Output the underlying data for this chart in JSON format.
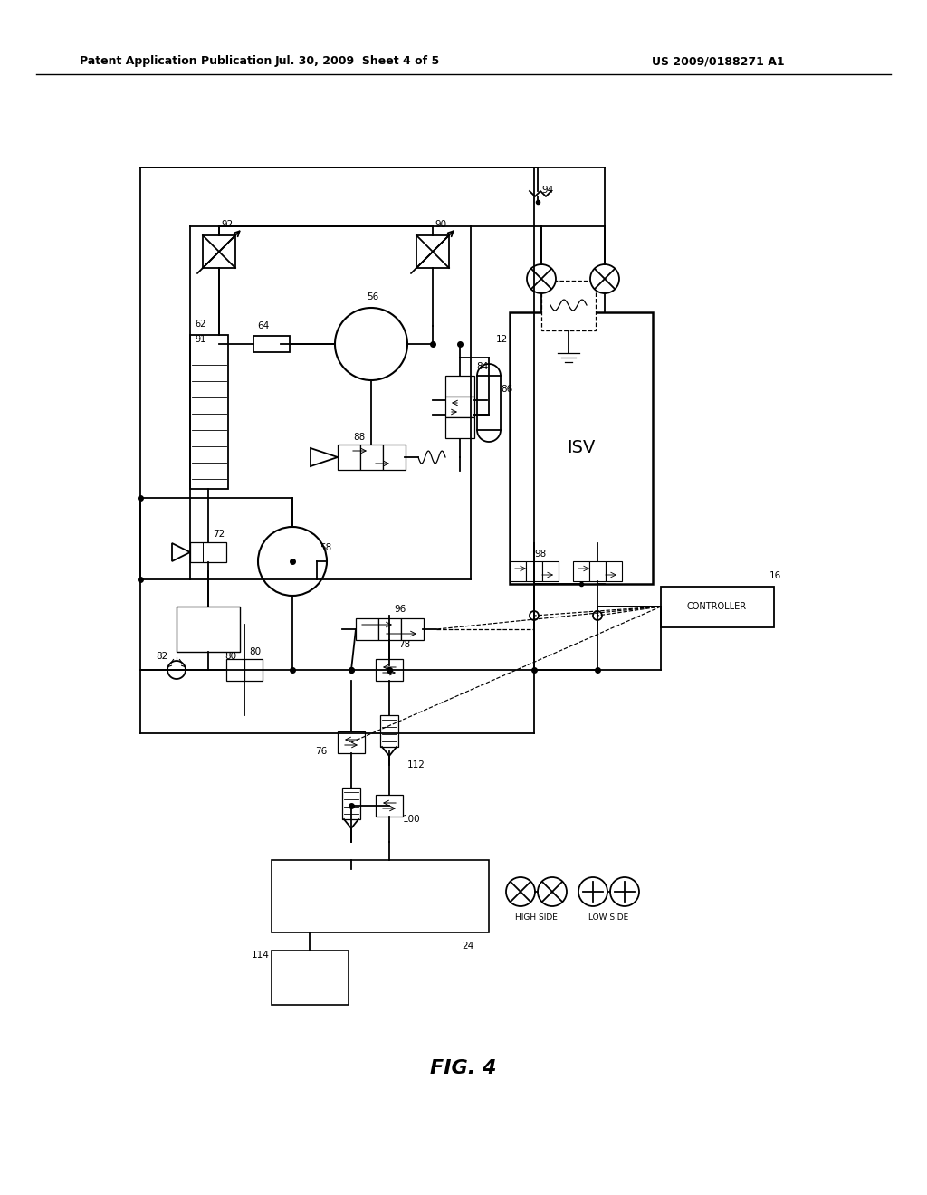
{
  "header_left": "Patent Application Publication",
  "header_mid": "Jul. 30, 2009  Sheet 4 of 5",
  "header_right": "US 2009/0188271 A1",
  "fig_label": "FIG. 4",
  "bg_color": "#ffffff"
}
